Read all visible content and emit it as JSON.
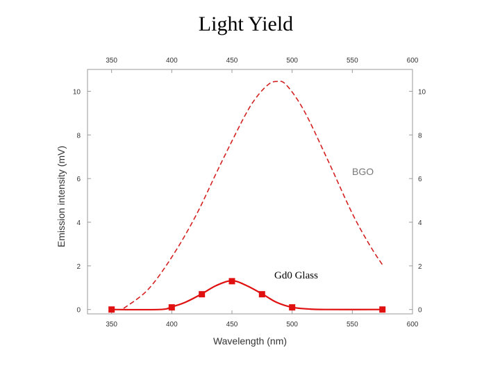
{
  "slide": {
    "title": "Light Yield"
  },
  "chart_data": {
    "type": "line",
    "xlabel": "Wavelength (nm)",
    "ylabel": "Emission intensity (mV)",
    "xlim": [
      330,
      600
    ],
    "ylim": [
      -0.2,
      11
    ],
    "x_ticks": [
      350,
      400,
      450,
      500,
      550,
      600
    ],
    "y_ticks": [
      0,
      2,
      4,
      6,
      8,
      10
    ],
    "grid": false,
    "series": [
      {
        "name": "BGO",
        "style": "dashed",
        "color": "#d42020",
        "x": [
          360,
          380,
          400,
          420,
          440,
          460,
          470,
          480,
          487,
          495,
          510,
          530,
          550,
          565,
          575
        ],
        "y": [
          0.05,
          0.9,
          2.4,
          4.3,
          6.6,
          8.8,
          9.7,
          10.3,
          10.45,
          10.3,
          9.1,
          6.8,
          4.4,
          2.9,
          2.05
        ]
      },
      {
        "name": "Gd0 Glass",
        "style": "solid",
        "color": "#e01010",
        "x": [
          350,
          400,
          425,
          450,
          475,
          500,
          575
        ],
        "y": [
          0.0,
          0.1,
          0.7,
          1.3,
          0.7,
          0.1,
          0.0
        ],
        "curve_x": [
          350,
          390,
          400,
          412,
          425,
          437,
          450,
          462,
          475,
          487,
          500,
          515,
          530,
          575
        ],
        "curve_y": [
          0.0,
          0.0,
          0.12,
          0.35,
          0.72,
          1.1,
          1.32,
          1.1,
          0.72,
          0.33,
          0.1,
          0.02,
          0.0,
          0.0
        ]
      }
    ]
  }
}
